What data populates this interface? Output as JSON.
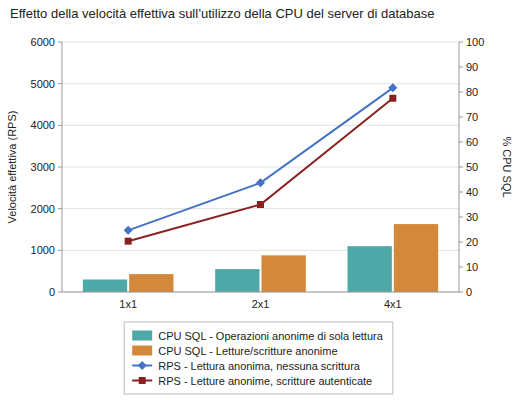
{
  "chart_data": {
    "type": "bar",
    "title": "Effetto della velocità effettiva sull’utilizzo della CPU del server di database",
    "categories": [
      "1x1",
      "2x1",
      "4x1"
    ],
    "series": [
      {
        "name": "CPU SQL - Operazioni anonime di sola lettura",
        "type": "bar",
        "color": "#4FA8A8",
        "values": [
          300,
          550,
          1100
        ]
      },
      {
        "name": "CPU SQL - Letture/scritture anonime",
        "type": "bar",
        "color": "#D4883A",
        "values": [
          430,
          880,
          1630
        ]
      },
      {
        "name": "RPS - Lettura anonima, nessuna scrittura",
        "type": "line",
        "color": "#4472C4",
        "marker": "diamond",
        "values": [
          1480,
          2620,
          4900
        ]
      },
      {
        "name": "RPS - Letture anonime, scritture autenticate",
        "type": "line",
        "color": "#8B2020",
        "marker": "square",
        "values": [
          1220,
          2100,
          4650
        ]
      }
    ],
    "ylabel": "Velocità effettiva (RPS)",
    "y2label": "% CPU SQL",
    "ylim": [
      0,
      6000
    ],
    "yticks": [
      0,
      1000,
      2000,
      3000,
      4000,
      5000,
      6000
    ],
    "y2lim": [
      0,
      100
    ],
    "y2ticks": [
      0,
      10,
      20,
      30,
      40,
      50,
      60,
      70,
      80,
      90,
      100
    ],
    "grid": true,
    "legend": "bottom"
  }
}
